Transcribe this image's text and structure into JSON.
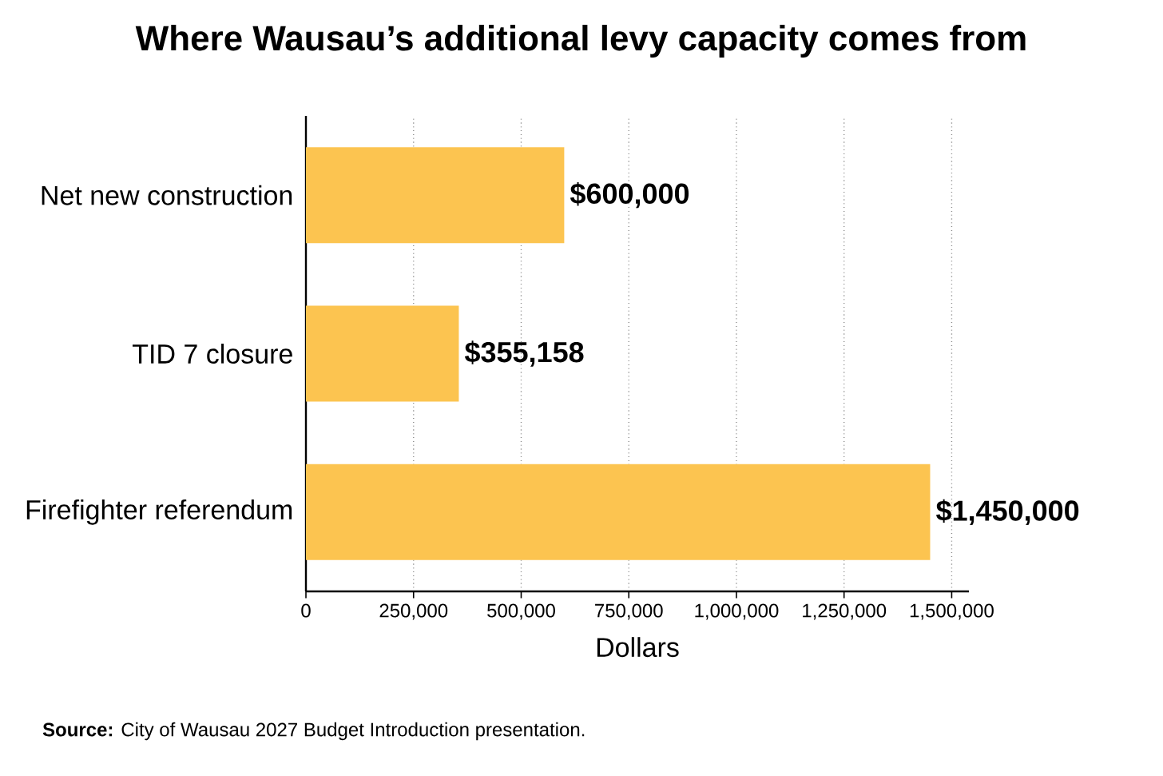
{
  "chart_data": {
    "type": "bar",
    "orientation": "horizontal",
    "title": "Where Wausau’s additional levy capacity comes from",
    "categories": [
      "Net new construction",
      "TID 7 closure",
      "Firefighter referendum"
    ],
    "values": [
      600000,
      355158,
      1450000
    ],
    "value_labels": [
      "$600,000",
      "$355,158",
      "$1,450,000"
    ],
    "color": "#fcc450",
    "xlabel": "Dollars",
    "xlim": [
      0,
      1540000
    ],
    "xticks": [
      0,
      {
        "value": 250000,
        "label": "250,000"
      },
      {
        "value": 500000,
        "label": "500,000"
      },
      {
        "value": 750000,
        "label": "750,000"
      },
      {
        "value": 1000000,
        "label": "1,000,000"
      },
      {
        "value": 1250000,
        "label": "1,250,000"
      },
      {
        "value": 1500000,
        "label": "1,500,000"
      }
    ],
    "grid": "x",
    "annotations": [
      "**Source:** City of Wausau 2027 Budget Introduction presentation."
    ]
  }
}
